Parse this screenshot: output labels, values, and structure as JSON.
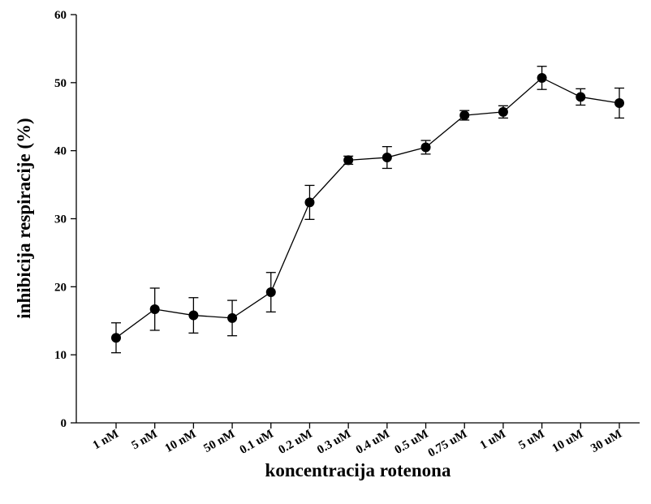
{
  "chart_data": {
    "type": "line",
    "title": "",
    "xlabel": "koncentracija rotenona",
    "ylabel": "inhibicija respiracije (%)",
    "ylim": [
      0,
      60
    ],
    "yticks": [
      0,
      10,
      20,
      30,
      40,
      50,
      60
    ],
    "grid": false,
    "legend": "none",
    "categories": [
      "1 nM",
      "5 nM",
      "10 nM",
      "50 nM",
      "0.1 uM",
      "0.2 uM",
      "0.3 uM",
      "0.4 uM",
      "0.5 uM",
      "0.75 uM",
      "1 uM",
      "5 uM",
      "10 uM",
      "30 uM"
    ],
    "series": [
      {
        "values": [
          12.5,
          16.7,
          15.8,
          15.4,
          19.2,
          32.4,
          38.6,
          39.0,
          40.5,
          45.2,
          45.7,
          50.7,
          47.9,
          47.0
        ],
        "error": [
          2.2,
          3.1,
          2.6,
          2.6,
          2.9,
          2.5,
          0.6,
          1.6,
          1.0,
          0.7,
          0.9,
          1.7,
          1.2,
          2.2
        ],
        "color": "#000000"
      }
    ]
  }
}
